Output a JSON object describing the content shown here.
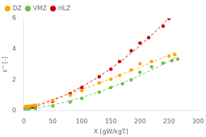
{
  "chart_data": {
    "type": "scatter",
    "xlabel": "X [gW/kgT]",
    "ylabel": "ε'' [-]",
    "xlim": [
      0,
      300
    ],
    "ylim": [
      0,
      6
    ],
    "xticks": [
      0,
      50,
      100,
      150,
      200,
      250,
      300
    ],
    "yticks": [
      0,
      2,
      4,
      6
    ],
    "grid": false,
    "legend": "upper left",
    "series": [
      {
        "name": "DZ",
        "color": "#FFA500",
        "marker": "circle",
        "line_style": "dashed",
        "x": [
          2,
          5,
          10,
          15,
          20,
          50,
          80,
          100,
          130,
          150,
          165,
          185,
          200,
          220,
          250,
          260
        ],
        "values": [
          0.25,
          0.28,
          0.3,
          0.32,
          0.35,
          0.65,
          1.0,
          1.3,
          1.8,
          2.05,
          2.3,
          2.65,
          3.05,
          3.2,
          3.55,
          3.65
        ],
        "fit_x": [
          0,
          20,
          40,
          60,
          80,
          100,
          120,
          140,
          160,
          180,
          200,
          220,
          240,
          260
        ],
        "fit_values": [
          0.1556,
          0.3841,
          0.621,
          0.8662,
          1.1199,
          1.3819,
          1.6523,
          1.9311,
          2.2182,
          2.5138,
          2.8177,
          3.1301,
          3.4508,
          3.7799
        ]
      },
      {
        "name": "VMZ",
        "color": "#6DBF4A",
        "marker": "circle",
        "line_style": "dashed",
        "x": [
          2,
          5,
          10,
          20,
          50,
          80,
          100,
          130,
          150,
          170,
          185,
          200,
          220,
          240,
          255,
          265
        ],
        "values": [
          0.1,
          0.1,
          0.12,
          0.13,
          0.3,
          0.55,
          0.8,
          1.2,
          1.5,
          1.75,
          2.0,
          2.5,
          2.85,
          3.1,
          3.25,
          3.35
        ],
        "fit_x": [
          0,
          20,
          40,
          60,
          80,
          100,
          120,
          140,
          160,
          180,
          200,
          220,
          240,
          260,
          265
        ],
        "fit_values": [
          0.0291,
          0.1482,
          0.2911,
          0.4578,
          0.6481,
          0.8622,
          1.1001,
          1.3617,
          1.6471,
          1.9562,
          2.2891,
          2.6456,
          3.026,
          3.4301,
          3.5348
        ]
      },
      {
        "name": "HLZ",
        "color": "#CC0000",
        "marker": "circle",
        "line_style": "dashed",
        "x": [
          2,
          5,
          10,
          15,
          20,
          50,
          80,
          100,
          130,
          150,
          165,
          185,
          200,
          215,
          240,
          250
        ],
        "values": [
          0.15,
          0.18,
          0.2,
          0.22,
          0.25,
          0.6,
          1.1,
          1.5,
          2.2,
          2.7,
          3.2,
          3.9,
          4.4,
          4.75,
          5.5,
          6.0
        ],
        "fit_x": [
          0,
          20,
          40,
          60,
          80,
          100,
          120,
          140,
          160,
          180,
          200,
          220,
          240,
          250
        ],
        "fit_values": [
          0.083,
          0.281,
          0.5274,
          0.822,
          1.1648,
          1.556,
          1.9954,
          2.4831,
          3.0191,
          3.6034,
          4.2359,
          4.9167,
          5.6458,
          6.0284
        ]
      }
    ]
  }
}
